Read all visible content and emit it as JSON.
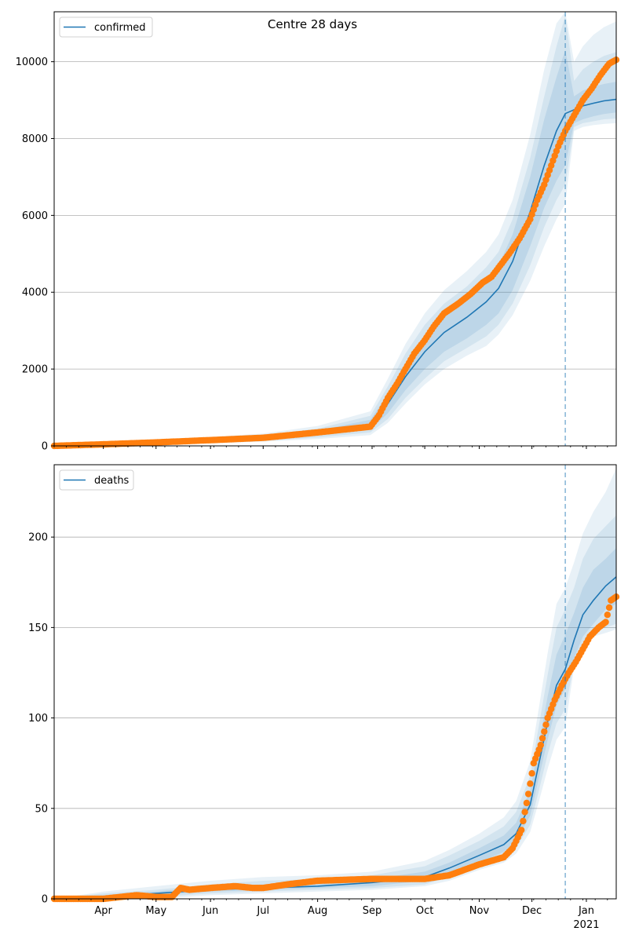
{
  "figure": {
    "title": "Centre 28 days"
  },
  "chart_data": [
    {
      "type": "line",
      "title": "",
      "xlabel": "",
      "ylabel": "",
      "xlim": [
        "2020-03-04",
        "2021-01-18"
      ],
      "ylim": [
        0,
        11300
      ],
      "yticks": [
        0,
        2000,
        4000,
        6000,
        8000,
        10000
      ],
      "xticks": [
        {
          "date": "2020-04-01",
          "label": "Apr",
          "sub": ""
        },
        {
          "date": "2020-05-01",
          "label": "May",
          "sub": ""
        },
        {
          "date": "2020-06-01",
          "label": "Jun",
          "sub": ""
        },
        {
          "date": "2020-07-01",
          "label": "Jul",
          "sub": ""
        },
        {
          "date": "2020-08-01",
          "label": "Aug",
          "sub": ""
        },
        {
          "date": "2020-09-01",
          "label": "Sep",
          "sub": ""
        },
        {
          "date": "2020-10-01",
          "label": "Oct",
          "sub": ""
        },
        {
          "date": "2020-11-01",
          "label": "Nov",
          "sub": ""
        },
        {
          "date": "2020-12-01",
          "label": "Dec",
          "sub": ""
        },
        {
          "date": "2021-01-01",
          "label": "Jan",
          "sub": "2021"
        }
      ],
      "grid": "horizontal",
      "legend": {
        "position": "top-left",
        "label": "confirmed"
      },
      "vline": "2020-12-20",
      "model": {
        "name": "confirmed",
        "color": "#1f77b4",
        "x": [
          "2020-03-04",
          "2020-04-01",
          "2020-05-01",
          "2020-06-01",
          "2020-07-01",
          "2020-08-01",
          "2020-08-31",
          "2020-09-10",
          "2020-09-20",
          "2020-10-01",
          "2020-10-12",
          "2020-10-25",
          "2020-11-05",
          "2020-11-12",
          "2020-11-20",
          "2020-11-30",
          "2020-12-08",
          "2020-12-15",
          "2020-12-20",
          "2020-12-25",
          "2020-12-30",
          "2021-01-05",
          "2021-01-11",
          "2021-01-18"
        ],
        "median": [
          0,
          20,
          80,
          140,
          200,
          340,
          550,
          1100,
          1800,
          2450,
          2950,
          3350,
          3750,
          4100,
          4800,
          6100,
          7300,
          8200,
          8650,
          8750,
          8850,
          8920,
          8980,
          9020
        ],
        "bands": [
          {
            "lower": [
              0,
              15,
              60,
              110,
              160,
              270,
              420,
              850,
              1450,
              2000,
              2450,
              2800,
              3150,
              3450,
              4050,
              5200,
              6200,
              6900,
              7300,
              8400,
              8500,
              8580,
              8640,
              8680
            ],
            "upper": [
              0,
              30,
              100,
              170,
              240,
              400,
              680,
              1350,
              2150,
              2850,
              3400,
              3850,
              4300,
              4700,
              5500,
              7000,
              8500,
              9600,
              10300,
              9100,
              9250,
              9350,
              9420,
              9480
            ]
          },
          {
            "lower": [
              0,
              10,
              50,
              90,
              130,
              220,
              350,
              700,
              1250,
              1750,
              2200,
              2550,
              2850,
              3150,
              3700,
              4700,
              5700,
              6400,
              6800,
              8300,
              8400,
              8450,
              8500,
              8520
            ],
            "upper": [
              0,
              40,
              120,
              200,
              280,
              450,
              780,
              1550,
              2400,
              3150,
              3700,
              4150,
              4650,
              5050,
              5900,
              7500,
              9100,
              10400,
              11200,
              9500,
              9800,
              10000,
              10150,
              10250
            ]
          },
          {
            "lower": [
              0,
              5,
              40,
              70,
              110,
              180,
              280,
              600,
              1100,
              1600,
              2000,
              2350,
              2600,
              2900,
              3400,
              4300,
              5200,
              5900,
              6300,
              8200,
              8300,
              8350,
              8380,
              8400
            ],
            "upper": [
              0,
              50,
              140,
              230,
              320,
              520,
              900,
              1750,
              2650,
              3450,
              4050,
              4550,
              5050,
              5500,
              6400,
              8100,
              9800,
              11000,
              11300,
              10000,
              10400,
              10700,
              10900,
              11050
            ]
          }
        ]
      },
      "observed": {
        "name": "observed",
        "color": "#ff7f0e",
        "x": [
          "2020-03-04",
          "2020-04-01",
          "2020-05-01",
          "2020-06-01",
          "2020-07-01",
          "2020-08-01",
          "2020-08-31",
          "2020-09-05",
          "2020-09-10",
          "2020-09-15",
          "2020-09-20",
          "2020-09-25",
          "2020-10-01",
          "2020-10-06",
          "2020-10-12",
          "2020-10-20",
          "2020-10-27",
          "2020-11-03",
          "2020-11-08",
          "2020-11-13",
          "2020-11-18",
          "2020-11-24",
          "2020-11-30",
          "2020-12-04",
          "2020-12-08",
          "2020-12-12",
          "2020-12-16",
          "2020-12-20",
          "2020-12-25",
          "2020-12-30",
          "2021-01-04",
          "2021-01-09",
          "2021-01-14",
          "2021-01-18"
        ],
        "y": [
          0,
          40,
          90,
          150,
          210,
          350,
          500,
          800,
          1250,
          1600,
          2000,
          2400,
          2750,
          3100,
          3450,
          3700,
          3950,
          4250,
          4400,
          4700,
          5000,
          5400,
          5900,
          6400,
          6800,
          7300,
          7800,
          8200,
          8600,
          9000,
          9300,
          9650,
          9950,
          10050
        ]
      }
    },
    {
      "type": "line",
      "title": "",
      "xlabel": "",
      "ylabel": "",
      "xlim": [
        "2020-03-04",
        "2021-01-18"
      ],
      "ylim": [
        0,
        240
      ],
      "yticks": [
        0,
        50,
        100,
        150,
        200
      ],
      "xticks": [
        {
          "date": "2020-04-01",
          "label": "Apr",
          "sub": ""
        },
        {
          "date": "2020-05-01",
          "label": "May",
          "sub": ""
        },
        {
          "date": "2020-06-01",
          "label": "Jun",
          "sub": ""
        },
        {
          "date": "2020-07-01",
          "label": "Jul",
          "sub": ""
        },
        {
          "date": "2020-08-01",
          "label": "Aug",
          "sub": ""
        },
        {
          "date": "2020-09-01",
          "label": "Sep",
          "sub": ""
        },
        {
          "date": "2020-10-01",
          "label": "Oct",
          "sub": ""
        },
        {
          "date": "2020-11-01",
          "label": "Nov",
          "sub": ""
        },
        {
          "date": "2020-12-01",
          "label": "Dec",
          "sub": ""
        },
        {
          "date": "2021-01-01",
          "label": "Jan",
          "sub": "2021"
        }
      ],
      "grid": "horizontal",
      "legend": {
        "position": "top-left",
        "label": "deaths"
      },
      "vline": "2020-12-20",
      "model": {
        "name": "deaths",
        "color": "#1f77b4",
        "x": [
          "2020-03-04",
          "2020-04-01",
          "2020-05-01",
          "2020-06-01",
          "2020-07-01",
          "2020-08-01",
          "2020-09-01",
          "2020-10-01",
          "2020-10-15",
          "2020-11-01",
          "2020-11-15",
          "2020-11-22",
          "2020-11-30",
          "2020-12-05",
          "2020-12-10",
          "2020-12-15",
          "2020-12-20",
          "2020-12-25",
          "2020-12-30",
          "2021-01-05",
          "2021-01-12",
          "2021-01-18"
        ],
        "median": [
          0,
          1,
          3,
          5,
          6,
          7,
          9,
          12,
          17,
          24,
          30,
          36,
          52,
          75,
          98,
          118,
          127,
          143,
          157,
          165,
          173,
          178
        ],
        "bands": [
          {
            "lower": [
              0,
              0,
              2,
              4,
              5,
              6,
              7,
              10,
              14,
              20,
              26,
              32,
              46,
              67,
              88,
              107,
              116,
              133,
              145,
              152,
              160,
              163
            ],
            "upper": [
              0,
              2,
              4,
              7,
              8,
              9,
              11,
              15,
              20,
              28,
              35,
              42,
              60,
              86,
              112,
              135,
              146,
              158,
              172,
              182,
              188,
              194
            ]
          },
          {
            "lower": [
              0,
              0,
              1,
              3,
              4,
              5,
              6,
              8,
              12,
              18,
              23,
              28,
              41,
              60,
              80,
              97,
              105,
              130,
              142,
              147,
              150,
              152
            ],
            "upper": [
              0,
              3,
              5,
              8,
              10,
              11,
              13,
              18,
              24,
              32,
              40,
              48,
              68,
              96,
              124,
              150,
              160,
              172,
              188,
              199,
              206,
              212
            ]
          },
          {
            "lower": [
              0,
              0,
              0,
              2,
              3,
              4,
              5,
              7,
              10,
              16,
              20,
              25,
              37,
              54,
              72,
              88,
              95,
              128,
              140,
              145,
              147,
              149
            ],
            "upper": [
              0,
              4,
              7,
              10,
              12,
              13,
              15,
              21,
              27,
              36,
              45,
              54,
              76,
              106,
              136,
              163,
              172,
              186,
              202,
              214,
              225,
              238
            ]
          }
        ]
      },
      "observed": {
        "name": "observed",
        "color": "#ff7f0e",
        "x": [
          "2020-03-04",
          "2020-04-01",
          "2020-04-20",
          "2020-05-01",
          "2020-05-10",
          "2020-05-15",
          "2020-05-20",
          "2020-06-01",
          "2020-06-15",
          "2020-06-25",
          "2020-07-01",
          "2020-07-15",
          "2020-08-01",
          "2020-09-01",
          "2020-10-01",
          "2020-10-15",
          "2020-11-01",
          "2020-11-15",
          "2020-11-20",
          "2020-11-25",
          "2020-11-29",
          "2020-12-02",
          "2020-12-06",
          "2020-12-10",
          "2020-12-14",
          "2020-12-18",
          "2020-12-22",
          "2020-12-26",
          "2020-12-30",
          "2021-01-03",
          "2021-01-08",
          "2021-01-12",
          "2021-01-15",
          "2021-01-18"
        ],
        "y": [
          0,
          0,
          2,
          1,
          1,
          6,
          5,
          6,
          7,
          6,
          6,
          8,
          10,
          11,
          11,
          13,
          19,
          23,
          28,
          38,
          58,
          75,
          85,
          100,
          110,
          118,
          125,
          131,
          138,
          145,
          150,
          153,
          165,
          167
        ]
      }
    }
  ]
}
